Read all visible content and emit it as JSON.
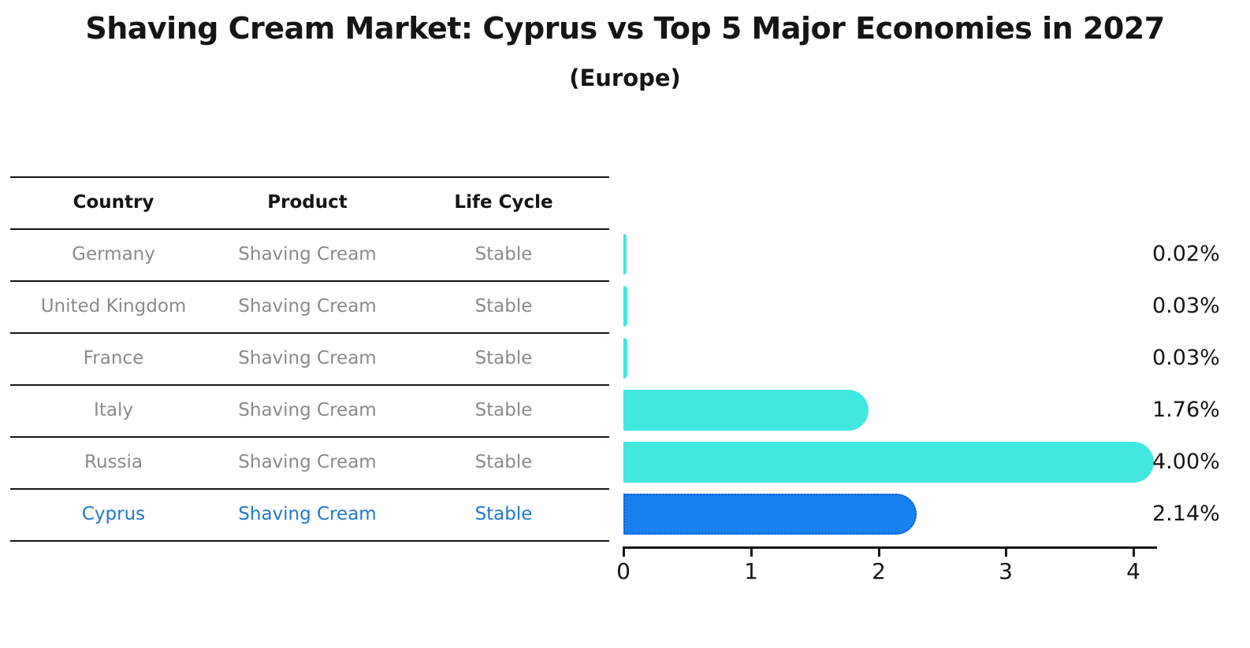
{
  "title": "Shaving Cream Market: Cyprus vs Top 5 Major Economies in 2027",
  "subtitle": "(Europe)",
  "table": {
    "headers": [
      "Country",
      "Product",
      "Life Cycle"
    ],
    "rows": [
      {
        "country": "Germany",
        "product": "Shaving Cream",
        "life_cycle": "Stable"
      },
      {
        "country": "United Kingdom",
        "product": "Shaving Cream",
        "life_cycle": "Stable"
      },
      {
        "country": "France",
        "product": "Shaving Cream",
        "life_cycle": "Stable"
      },
      {
        "country": "Italy",
        "product": "Shaving Cream",
        "life_cycle": "Stable"
      },
      {
        "country": "Russia",
        "product": "Shaving Cream",
        "life_cycle": "Stable"
      },
      {
        "country": "Cyprus",
        "product": "Shaving Cream",
        "life_cycle": "Stable"
      }
    ]
  },
  "chart_data": {
    "type": "bar",
    "orientation": "horizontal",
    "categories": [
      "Germany",
      "United Kingdom",
      "France",
      "Italy",
      "Russia",
      "Cyprus"
    ],
    "values": [
      0.02,
      0.03,
      0.03,
      1.76,
      4.0,
      2.14
    ],
    "value_labels": [
      "0.02%",
      "0.03%",
      "0.03%",
      "1.76%",
      "4.00%",
      "2.14%"
    ],
    "x_ticks": [
      "0",
      "1",
      "2",
      "3",
      "4"
    ],
    "xlim": [
      0,
      4.19
    ],
    "grid": "off",
    "legend": "none",
    "bar_color": "#42e8e0",
    "highlight_color": "#1a80f0",
    "highlight_index": 5
  },
  "colors": {
    "background": "#ffffff",
    "text": "#151515",
    "muted_text": "#8a8a8a",
    "highlight_text": "#1f78d1",
    "bar_cyan": "#42e8e0",
    "bar_blue": "#1a80f0",
    "dotted_edge": "#0d5ed6"
  }
}
